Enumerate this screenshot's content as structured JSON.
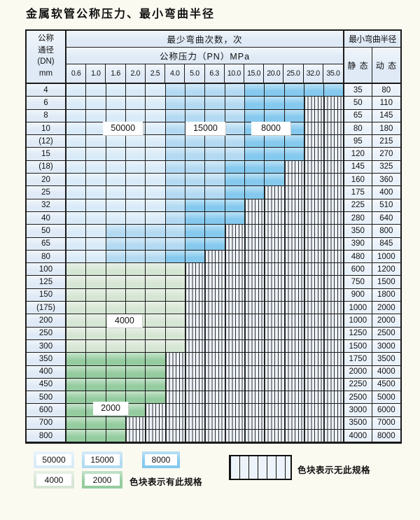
{
  "title": "金属软管公称压力、最小弯曲半径",
  "colors": {
    "blue_50000": "#d9ebf8",
    "blue_15000": "#b3daf2",
    "blue_8000": "#85c9ee",
    "green_4000": "#d6e6d4",
    "green_2000": "#95cc9f",
    "hatch_bg": "#edf3fb",
    "header_bg": "#dfeaf6",
    "value_bg": "#e9f1fa",
    "grid_line": "#1a1a1a",
    "page_bg": "#fbfaf1"
  },
  "table": {
    "corner": [
      "公称",
      "通径",
      "(DN)",
      "mm"
    ],
    "cycles_header": "最少弯曲次数，次",
    "pressure_header": "公称压力（PN）MPa",
    "radius_header": "最小弯曲半径",
    "static_header": "静 态",
    "dynamic_header": "动 态",
    "pressure_cols": [
      "0.6",
      "1.0",
      "1.6",
      "2.0",
      "2.5",
      "4.0",
      "5.0",
      "6.3",
      "10.0",
      "15.0",
      "20.0",
      "25.0",
      "32.0",
      "35.0"
    ],
    "rows": [
      {
        "dn": "4",
        "static": "35",
        "dynamic": "80",
        "zones": [
          [
            "b1",
            5
          ],
          [
            "b2",
            4
          ],
          [
            "b3",
            5
          ]
        ]
      },
      {
        "dn": "6",
        "static": "50",
        "dynamic": "110",
        "zones": [
          [
            "b1",
            5
          ],
          [
            "b2",
            4
          ],
          [
            "b3",
            3
          ],
          [
            "x",
            2
          ]
        ]
      },
      {
        "dn": "8",
        "static": "65",
        "dynamic": "145",
        "zones": [
          [
            "b1",
            5
          ],
          [
            "b2",
            4
          ],
          [
            "b3",
            3
          ],
          [
            "x",
            2
          ]
        ]
      },
      {
        "dn": "10",
        "static": "80",
        "dynamic": "180",
        "zones": [
          [
            "b1",
            5
          ],
          [
            "b2",
            4
          ],
          [
            "b3",
            3
          ],
          [
            "x",
            2
          ]
        ]
      },
      {
        "dn": "(12)",
        "static": "95",
        "dynamic": "215",
        "zones": [
          [
            "b1",
            5
          ],
          [
            "b2",
            4
          ],
          [
            "b3",
            3
          ],
          [
            "x",
            2
          ]
        ]
      },
      {
        "dn": "15",
        "static": "120",
        "dynamic": "270",
        "zones": [
          [
            "b1",
            5
          ],
          [
            "b2",
            4
          ],
          [
            "b3",
            3
          ],
          [
            "x",
            2
          ]
        ]
      },
      {
        "dn": "(18)",
        "static": "145",
        "dynamic": "325",
        "zones": [
          [
            "b1",
            5
          ],
          [
            "b2",
            3
          ],
          [
            "b3",
            3
          ],
          [
            "x",
            3
          ]
        ]
      },
      {
        "dn": "20",
        "static": "160",
        "dynamic": "360",
        "zones": [
          [
            "b1",
            5
          ],
          [
            "b2",
            3
          ],
          [
            "b3",
            3
          ],
          [
            "x",
            3
          ]
        ]
      },
      {
        "dn": "25",
        "static": "175",
        "dynamic": "400",
        "zones": [
          [
            "b1",
            5
          ],
          [
            "b2",
            3
          ],
          [
            "b3",
            2
          ],
          [
            "x",
            4
          ]
        ]
      },
      {
        "dn": "32",
        "static": "225",
        "dynamic": "510",
        "zones": [
          [
            "b1",
            5
          ],
          [
            "b2",
            1
          ],
          [
            "b3",
            3
          ],
          [
            "x",
            5
          ]
        ]
      },
      {
        "dn": "40",
        "static": "280",
        "dynamic": "640",
        "zones": [
          [
            "b1",
            5
          ],
          [
            "b2",
            1
          ],
          [
            "b3",
            3
          ],
          [
            "x",
            5
          ]
        ]
      },
      {
        "dn": "50",
        "static": "350",
        "dynamic": "800",
        "zones": [
          [
            "b1",
            2
          ],
          [
            "b2",
            4
          ],
          [
            "b3",
            2
          ],
          [
            "x",
            6
          ]
        ]
      },
      {
        "dn": "65",
        "static": "390",
        "dynamic": "845",
        "zones": [
          [
            "b1",
            2
          ],
          [
            "b2",
            4
          ],
          [
            "b3",
            2
          ],
          [
            "x",
            6
          ]
        ]
      },
      {
        "dn": "80",
        "static": "480",
        "dynamic": "1000",
        "zones": [
          [
            "b1",
            2
          ],
          [
            "b2",
            3
          ],
          [
            "b3",
            2
          ],
          [
            "x",
            7
          ]
        ]
      },
      {
        "dn": "100",
        "static": "600",
        "dynamic": "1200",
        "zones": [
          [
            "g1",
            6
          ],
          [
            "x",
            8
          ]
        ]
      },
      {
        "dn": "125",
        "static": "750",
        "dynamic": "1500",
        "zones": [
          [
            "g1",
            6
          ],
          [
            "x",
            8
          ]
        ]
      },
      {
        "dn": "150",
        "static": "900",
        "dynamic": "1800",
        "zones": [
          [
            "g1",
            6
          ],
          [
            "x",
            8
          ]
        ]
      },
      {
        "dn": "(175)",
        "static": "1000",
        "dynamic": "2000",
        "zones": [
          [
            "g1",
            6
          ],
          [
            "x",
            8
          ]
        ]
      },
      {
        "dn": "200",
        "static": "1000",
        "dynamic": "2000",
        "zones": [
          [
            "g1",
            6
          ],
          [
            "x",
            8
          ]
        ]
      },
      {
        "dn": "250",
        "static": "1250",
        "dynamic": "2500",
        "zones": [
          [
            "g1",
            6
          ],
          [
            "x",
            8
          ]
        ]
      },
      {
        "dn": "300",
        "static": "1500",
        "dynamic": "3000",
        "zones": [
          [
            "g1",
            6
          ],
          [
            "x",
            8
          ]
        ]
      },
      {
        "dn": "350",
        "static": "1750",
        "dynamic": "3500",
        "zones": [
          [
            "g2",
            5
          ],
          [
            "x",
            9
          ]
        ]
      },
      {
        "dn": "400",
        "static": "2000",
        "dynamic": "4000",
        "zones": [
          [
            "g2",
            5
          ],
          [
            "x",
            9
          ]
        ]
      },
      {
        "dn": "450",
        "static": "2250",
        "dynamic": "4500",
        "zones": [
          [
            "g2",
            5
          ],
          [
            "x",
            9
          ]
        ]
      },
      {
        "dn": "500",
        "static": "2500",
        "dynamic": "5000",
        "zones": [
          [
            "g2",
            5
          ],
          [
            "x",
            9
          ]
        ]
      },
      {
        "dn": "600",
        "static": "3000",
        "dynamic": "6000",
        "zones": [
          [
            "g2",
            4
          ],
          [
            "x",
            10
          ]
        ]
      },
      {
        "dn": "700",
        "static": "3500",
        "dynamic": "7000",
        "zones": [
          [
            "g2",
            3
          ],
          [
            "x",
            11
          ]
        ]
      },
      {
        "dn": "800",
        "static": "4000",
        "dynamic": "8000",
        "zones": [
          [
            "g2",
            3
          ],
          [
            "x",
            11
          ]
        ]
      }
    ],
    "overlays": [
      {
        "text": "50000",
        "dn": "10",
        "col": 1.85,
        "span": 2,
        "row_offset": 0
      },
      {
        "text": "15000",
        "dn": "10",
        "col": 6.0,
        "span": 2,
        "row_offset": 0
      },
      {
        "text": "8000",
        "dn": "10",
        "col": 9.3,
        "span": 2,
        "row_offset": 0
      },
      {
        "text": "4000",
        "dn": "200",
        "col": 2.05,
        "span": 1.75,
        "row_offset": 0
      },
      {
        "text": "2000",
        "dn": "500",
        "col": 1.35,
        "span": 1.75,
        "row_offset": 0.85
      }
    ]
  },
  "legend": {
    "chips": [
      {
        "label": "50000",
        "zone": "b1"
      },
      {
        "label": "15000",
        "zone": "b2"
      },
      {
        "label": "8000",
        "zone": "b3"
      },
      {
        "label": "4000",
        "zone": "g1"
      },
      {
        "label": "2000",
        "zone": "g2"
      }
    ],
    "has_spec_text": "色块表示有此规格",
    "no_spec_text": "色块表示无此规格"
  }
}
